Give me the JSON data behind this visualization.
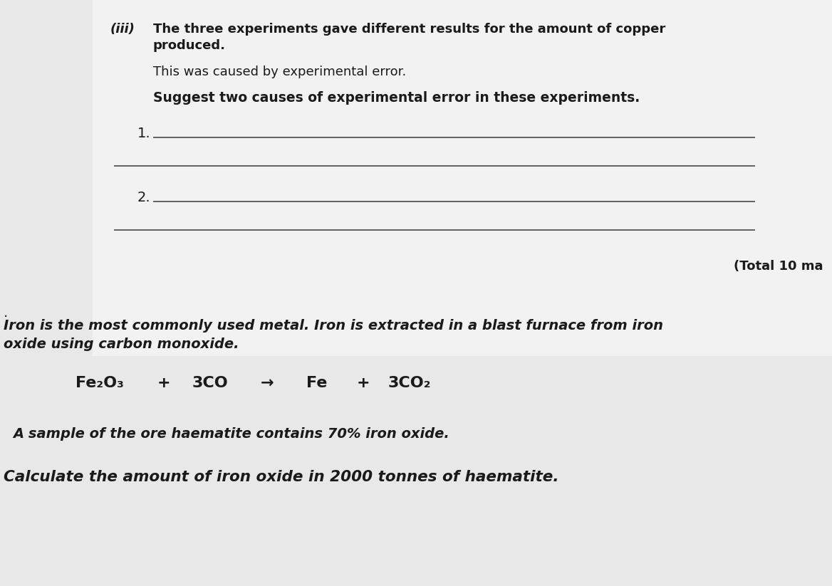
{
  "bg_color": "#e8e8e8",
  "white_box_color": "#f0f0f0",
  "text_color": "#1a1a1a",
  "line_color": "#555555",
  "section1": {
    "label_iii": "(iii)",
    "line1": "The three experiments gave different results for the amount of copper",
    "line2": "produced.",
    "line3": "This was caused by experimental error.",
    "line4": "Suggest two causes of experimental error in these experiments.",
    "num1": "1.",
    "num2": "2.",
    "total": "(Total 10 ma"
  },
  "section2": {
    "intro": "Iron is the most commonly used metal. Iron is extracted in a blast furnace from iron",
    "intro2": "oxide using carbon monoxide.",
    "eq_fe2o3": "Fe₂O₃",
    "eq_plus1": "+",
    "eq_3co": "3CO",
    "eq_arrow": "→",
    "eq_fe": "Fe",
    "eq_plus2": "+",
    "eq_3co2": "3CO₂",
    "sample": "A sample of the ore haematite contains 70% iron oxide.",
    "calculate": "Calculate the amount of iron oxide in 2000 tonnes of haematite."
  }
}
